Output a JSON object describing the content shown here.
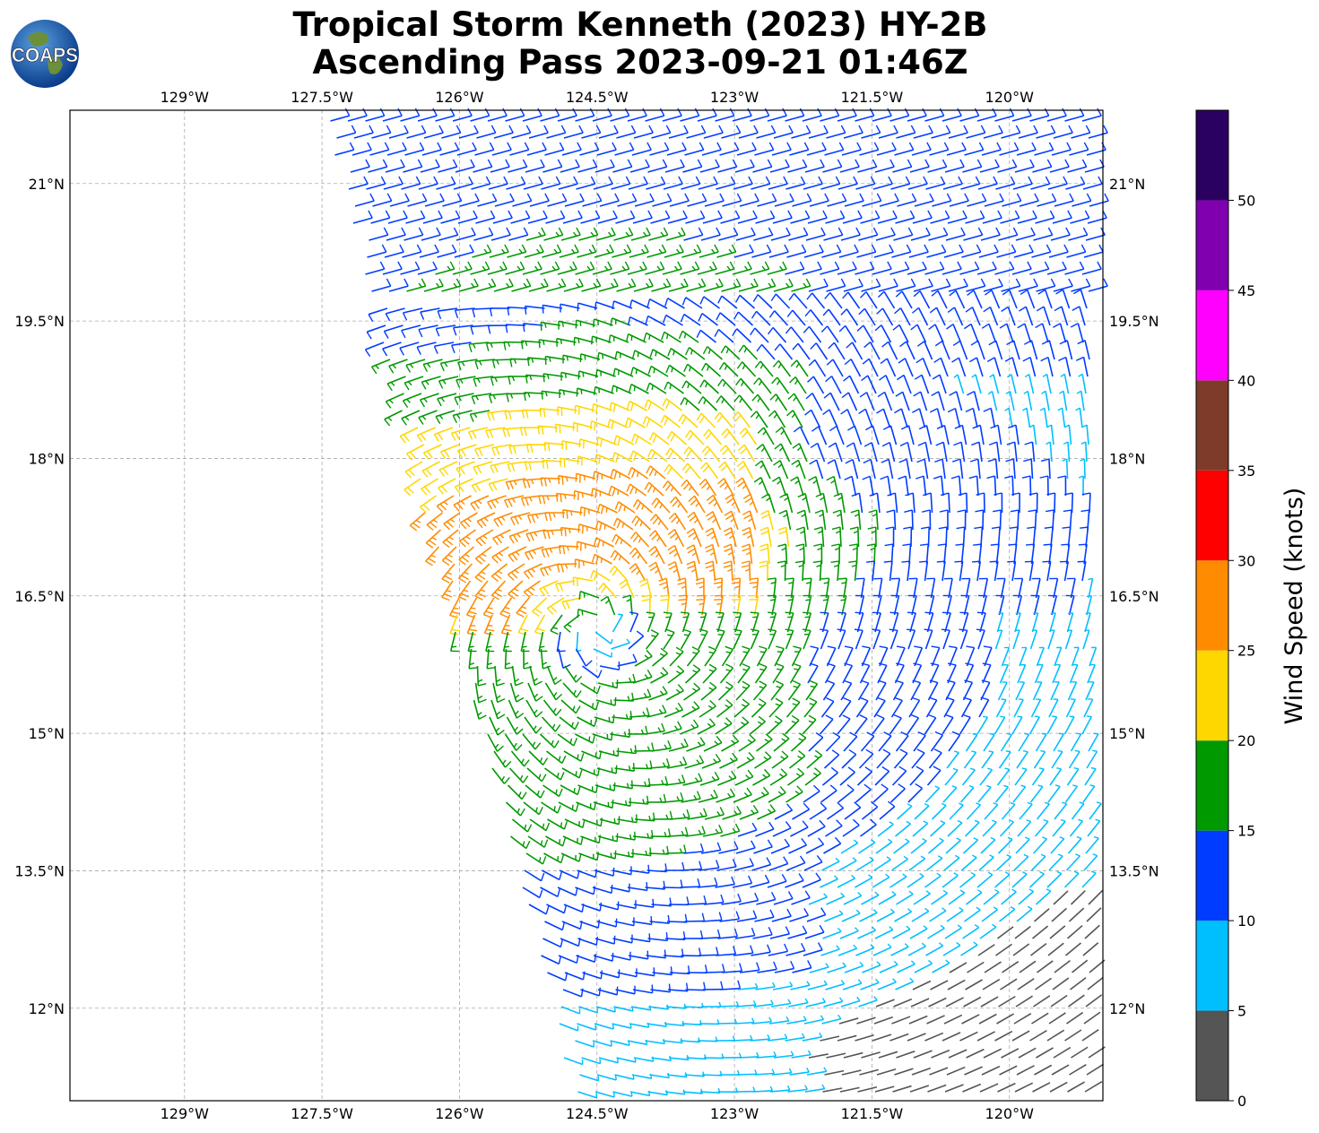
{
  "title": {
    "line1": "Tropical Storm Kenneth (2023) HY-2B",
    "line2": "Ascending Pass 2023-09-21 01:46Z"
  },
  "logo": {
    "text": "COAPS",
    "icon": "globe-logo-icon"
  },
  "map": {
    "lon_ticks": [
      "129°W",
      "127.5°W",
      "126°W",
      "124.5°W",
      "123°W",
      "121.5°W",
      "120°W"
    ],
    "lat_ticks": [
      "21°N",
      "19.5°N",
      "18°N",
      "16.5°N",
      "15°N",
      "13.5°N",
      "12°N"
    ],
    "lon_range": [
      -130.25,
      -118.98
    ],
    "lat_range": [
      10.99,
      21.8
    ],
    "grid": true,
    "feature": "wind-barbs",
    "storm_center": {
      "lon": -124.5,
      "lat": 16.15
    }
  },
  "colorbar": {
    "label": "Wind Speed (knots)",
    "ticks": [
      "0",
      "5",
      "10",
      "15",
      "20",
      "25",
      "30",
      "35",
      "40",
      "45",
      "50"
    ],
    "bins": [
      {
        "from": 0,
        "to": 5,
        "color": "#555555"
      },
      {
        "from": 5,
        "to": 10,
        "color": "#00BFFF"
      },
      {
        "from": 10,
        "to": 15,
        "color": "#003CFF"
      },
      {
        "from": 15,
        "to": 20,
        "color": "#009900"
      },
      {
        "from": 20,
        "to": 25,
        "color": "#FFD700"
      },
      {
        "from": 25,
        "to": 30,
        "color": "#FF8C00"
      },
      {
        "from": 30,
        "to": 35,
        "color": "#FF0000"
      },
      {
        "from": 35,
        "to": 40,
        "color": "#7F3B2A"
      },
      {
        "from": 40,
        "to": 45,
        "color": "#FF00FF"
      },
      {
        "from": 45,
        "to": 50,
        "color": "#8000B0"
      },
      {
        "from": 50,
        "to": 55,
        "color": "#2A0060"
      }
    ]
  }
}
